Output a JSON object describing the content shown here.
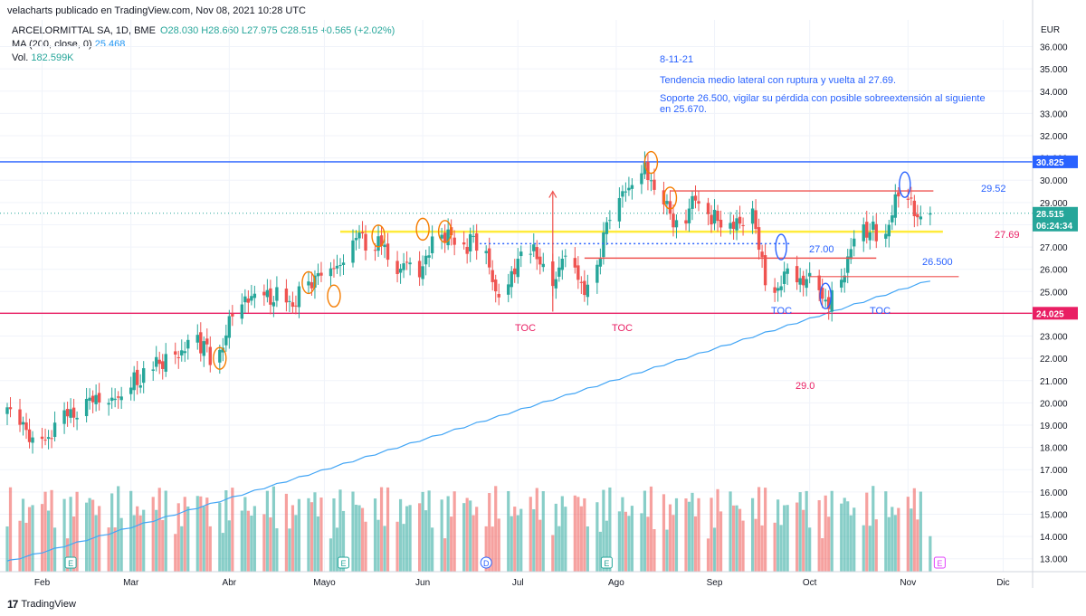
{
  "header": {
    "text": "velacharts publicado en TradingView.com, Nov 08, 2021 10:28 UTC"
  },
  "legend": {
    "symbol": "ARCELORMITTAL SA, 1D, BME",
    "ohlc": "O28.030  H28.660  L27.975  C28.515  +0.565 (+2.02%)",
    "ma_label": "MA (200, close, 0)",
    "ma_value": "25.468",
    "vol_label": "Vol.",
    "vol_value": "182.599K"
  },
  "footer": {
    "logo_mark": "17",
    "logo_text": "TradingView"
  },
  "colors": {
    "up": "#26a69a",
    "down": "#ef5350",
    "ma": "#42a5f5",
    "blue_line": "#2962ff",
    "pink_line": "#e91e63",
    "yellow_line": "#ffeb3b",
    "red_line": "#ef5350",
    "annotation_text": "#2962ff"
  },
  "chart_data": {
    "type": "candlestick",
    "currency": "EUR",
    "y_ticks": [
      "36.000",
      "35.000",
      "34.000",
      "33.000",
      "32.000",
      "31.000",
      "30.000",
      "29.000",
      "28.000",
      "27.000",
      "26.000",
      "25.000",
      "24.000",
      "23.000",
      "22.000",
      "21.000",
      "20.000",
      "19.000",
      "18.000",
      "17.000",
      "16.000",
      "15.000",
      "14.000",
      "13.000"
    ],
    "ylim": [
      12.5,
      37.2
    ],
    "x_ticks": [
      "Feb",
      "Mar",
      "Abr",
      "Mayo",
      "Jun",
      "Jul",
      "Ago",
      "Sep",
      "Oct",
      "Nov",
      "Dic"
    ],
    "x_range": [
      "2021-01-21",
      "2021-12-10"
    ],
    "price_labels": [
      {
        "text": "30.825",
        "value": 30.825,
        "color": "#2962ff"
      },
      {
        "text": "28.515",
        "value": 28.515,
        "color": "#26a69a"
      },
      {
        "text": "06:24:34",
        "value": 28.0,
        "color": "#26a69a"
      },
      {
        "text": "24.025",
        "value": 24.025,
        "color": "#e91e63"
      }
    ],
    "horizontal_levels": [
      {
        "name": "resistance",
        "value": 30.825,
        "color": "#2962ff"
      },
      {
        "name": "support-pink",
        "value": 24.025,
        "color": "#e91e63"
      },
      {
        "name": "lateral-yellow",
        "value": 27.69,
        "color": "#ffeb3b"
      }
    ],
    "moving_average_200": {
      "name": "MA (200, close, 0)",
      "last": 25.468
    },
    "closes_approx": [
      19.8,
      19.4,
      19.0,
      18.6,
      18.2,
      18.6,
      18.2,
      18.8,
      19.5,
      19.7,
      19.3,
      19.6,
      20.4,
      20.0,
      20.3,
      19.8,
      20.5,
      19.9,
      20.8,
      21.2,
      20.7,
      21.5,
      22.0,
      21.6,
      21.9,
      22.3,
      22.0,
      22.6,
      23.0,
      22.4,
      22.8,
      21.8,
      22.4,
      23.2,
      24.0,
      24.4,
      24.8,
      24.6,
      25.1,
      24.8,
      24.4,
      25.0,
      24.6,
      24.2,
      24.8,
      25.5,
      25.2,
      26.0,
      25.6,
      26.3,
      25.9,
      26.5,
      27.3,
      27.8,
      27.2,
      26.8,
      27.5,
      27.0,
      26.2,
      25.7,
      26.6,
      26.1,
      25.8,
      26.4,
      27.0,
      27.6,
      27.3,
      27.8,
      27.0,
      26.8,
      27.6,
      27.2,
      26.5,
      25.8,
      24.6,
      25.2,
      25.8,
      26.2,
      26.8,
      27.0,
      26.5,
      26.2,
      25.4,
      25.6,
      26.8,
      26.2,
      25.7,
      24.8,
      25.4,
      26.3,
      27.6,
      28.2,
      29.0,
      29.8,
      29.4,
      30.2,
      30.6,
      30.1,
      29.5,
      29.0,
      28.6,
      27.8,
      28.2,
      28.9,
      29.4,
      28.6,
      28.2,
      28.5,
      28.0,
      27.8,
      28.3,
      27.8,
      28.7,
      27.6,
      26.5,
      25.2,
      24.8,
      25.6,
      26.0,
      25.6,
      25.2,
      25.8,
      25.4,
      24.6,
      24.3,
      25.0,
      25.8,
      26.4,
      27.4,
      27.8,
      27.5,
      28.0,
      27.2,
      28.0,
      29.0,
      29.4,
      29.1,
      28.6,
      28.1,
      28.5
    ],
    "volume": {
      "label": "Vol.",
      "last": "182.599K"
    },
    "event_markers": [
      {
        "text": "E",
        "date": "2021-02-10"
      },
      {
        "text": "E",
        "date": "2021-05-07"
      },
      {
        "text": "D",
        "date": "2021-06-21"
      },
      {
        "text": "E",
        "date": "2021-07-29"
      },
      {
        "text": "E",
        "date": "2021-11-11"
      }
    ],
    "annotations": [
      {
        "text": "8-11-21",
        "color": "#2962ff"
      },
      {
        "text": "Tendencia medio lateral con ruptura y vuelta al 27.69.",
        "color": "#2962ff"
      },
      {
        "text": "Soporte 26.500, vigilar su pérdida con posible sobreextensión al siguiente",
        "color": "#2962ff"
      },
      {
        "text": "en 25.670.",
        "color": "#2962ff"
      },
      {
        "text": "29.52",
        "color": "#2962ff"
      },
      {
        "text": "27.69",
        "color": "#e91e63"
      },
      {
        "text": "27.00",
        "color": "#2962ff"
      },
      {
        "text": "26.500",
        "color": "#2962ff"
      },
      {
        "text": "29.0",
        "color": "#e91e63"
      },
      {
        "text": "TOC",
        "color": "#e91e63"
      },
      {
        "text": "TOC",
        "color": "#e91e63"
      },
      {
        "text": "TOC",
        "color": "#2962ff"
      },
      {
        "text": "TOC",
        "color": "#2962ff"
      }
    ]
  }
}
